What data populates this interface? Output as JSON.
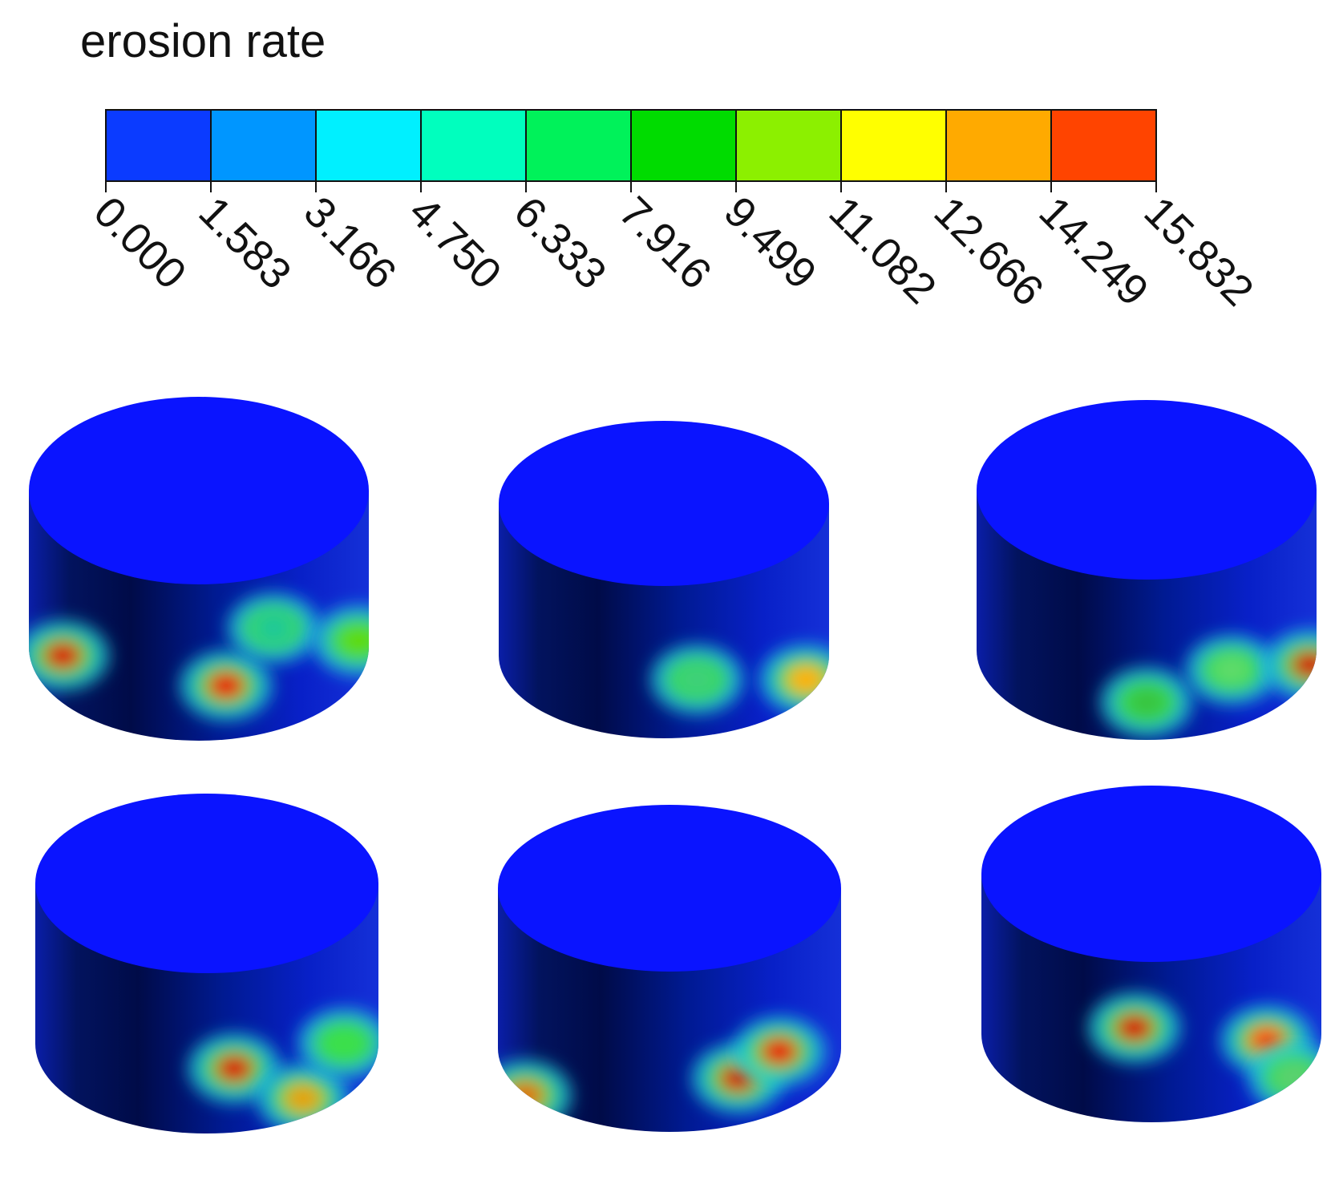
{
  "legend": {
    "title": "erosion rate",
    "tick_labels": [
      "0.000",
      "1.583",
      "3.166",
      "4.750",
      "6.333",
      "7.916",
      "9.499",
      "11.082",
      "12.666",
      "14.249",
      "15.832"
    ],
    "bin_colors": [
      "#0b3bff",
      "#0096ff",
      "#00f0ff",
      "#00ffbe",
      "#00f25a",
      "#00dc00",
      "#8cf000",
      "#ffff00",
      "#ffaa00",
      "#ff4400"
    ]
  },
  "panels": [
    {
      "name": "panel-1",
      "hotspots": [
        [
          "#d80000",
          0.1,
          0.66
        ],
        [
          "#e80000",
          0.58,
          0.78
        ],
        [
          "#1bc79a",
          0.72,
          0.55
        ],
        [
          "#5edb00",
          0.97,
          0.6
        ]
      ]
    },
    {
      "name": "panel-2",
      "hotspots": [
        [
          "#3cd07a",
          0.6,
          0.75
        ],
        [
          "#ffb000",
          0.93,
          0.75
        ]
      ]
    },
    {
      "name": "panel-3",
      "hotspots": [
        [
          "#37c440",
          0.5,
          0.85
        ],
        [
          "#5edb6a",
          0.75,
          0.72
        ],
        [
          "#d10000",
          0.98,
          0.7
        ]
      ]
    },
    {
      "name": "panel-4",
      "hotspots": [
        [
          "#d80000",
          0.58,
          0.74
        ],
        [
          "#e8a000",
          0.78,
          0.86
        ],
        [
          "#3ae04a",
          0.9,
          0.64
        ]
      ]
    },
    {
      "name": "panel-5",
      "hotspots": [
        [
          "#d80000",
          0.7,
          0.78
        ],
        [
          "#e80000",
          0.82,
          0.67
        ],
        [
          "#e07000",
          0.08,
          0.85
        ]
      ]
    },
    {
      "name": "panel-6",
      "hotspots": [
        [
          "#d40000",
          0.45,
          0.62
        ],
        [
          "#ff4000",
          0.84,
          0.67
        ],
        [
          "#5bd070",
          0.92,
          0.82
        ]
      ]
    }
  ]
}
